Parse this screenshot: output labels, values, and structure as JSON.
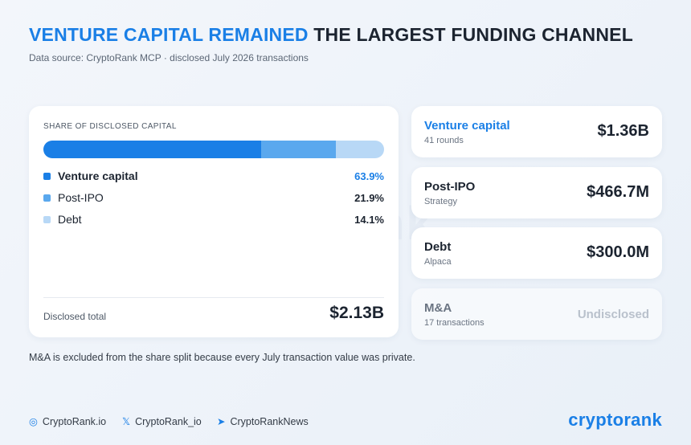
{
  "header": {
    "title_highlight": "VENTURE CAPITAL REMAINED",
    "title_rest": "THE LARGEST FUNDING CHANNEL",
    "subtitle": "Data source: CryptoRank MCP · disclosed July 2026 transactions"
  },
  "share": {
    "title": "SHARE OF DISCLOSED CAPITAL",
    "categories": [
      "Venture capital",
      "Post-IPO",
      "Debt"
    ],
    "values": [
      63.9,
      21.9,
      14.1
    ],
    "value_labels": [
      "63.9%",
      "21.9%",
      "14.1%"
    ],
    "colors": [
      "#1a7fe6",
      "#5aa8ee",
      "#b8d8f6"
    ],
    "total_label": "Disclosed total",
    "total": "$2.13B"
  },
  "cards": [
    {
      "name": "Venture capital",
      "detail": "41 rounds",
      "amount": "$1.36B"
    },
    {
      "name": "Post-IPO",
      "detail": "Strategy",
      "amount": "$466.7M"
    },
    {
      "name": "Debt",
      "detail": "Alpaca",
      "amount": "$300.0M"
    },
    {
      "name": "M&A",
      "detail": "17 transactions",
      "amount": "Undisclosed"
    }
  ],
  "note": "M&A is excluded from the share split because every July transaction value was private.",
  "watermark": "cryptorank",
  "footer": {
    "links": [
      "CryptoRank.io",
      "CryptoRank_io",
      "CryptoRankNews"
    ],
    "logo": "cryptorank"
  }
}
